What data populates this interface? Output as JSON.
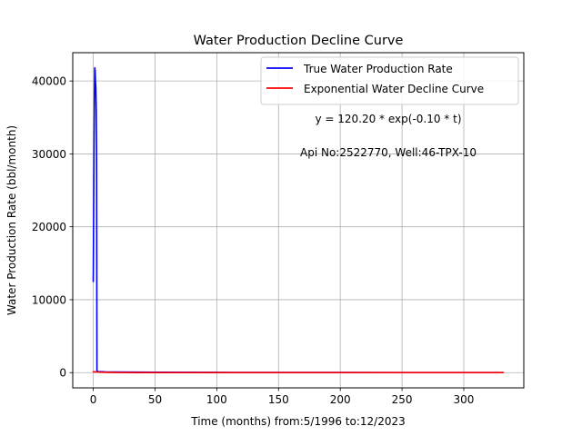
{
  "chart_data": {
    "type": "line",
    "title": "Water Production Decline Curve",
    "xlabel": "Time (months) from:5/1996 to:12/2023",
    "ylabel": "Water Production Rate (bbl/month)",
    "xlim": [
      -16.6,
      348.6
    ],
    "ylim": [
      -2090,
      43880
    ],
    "xticks": [
      0,
      50,
      100,
      150,
      200,
      250,
      300
    ],
    "yticks": [
      0,
      10000,
      20000,
      30000,
      40000
    ],
    "xtick_labels": [
      "0",
      "50",
      "100",
      "150",
      "200",
      "250",
      "300"
    ],
    "ytick_labels": [
      "0",
      "10000",
      "20000",
      "30000",
      "40000"
    ],
    "grid": true,
    "legend_position": "top-right",
    "series": [
      {
        "name": "True Water Production Rate",
        "color": "#0000ff",
        "x": [
          0,
          0.3,
          0.6,
          0.9,
          1.2,
          1.5,
          1.8,
          2.1,
          2.4,
          2.7,
          3,
          3,
          4,
          10,
          50,
          100,
          150,
          200,
          250,
          300,
          332
        ],
        "y": [
          12500,
          21000,
          30000,
          37000,
          41800,
          41500,
          40000,
          39000,
          36000,
          30000,
          500,
          200,
          150,
          100,
          50,
          30,
          20,
          15,
          10,
          10,
          10
        ]
      },
      {
        "name": "Exponential Water Decline Curve",
        "color": "#ff0000",
        "x": [
          0,
          1,
          2,
          3,
          5,
          8,
          12,
          20,
          35,
          60,
          100,
          150,
          200,
          250,
          300,
          332
        ],
        "y": [
          120.2,
          108.8,
          98.4,
          89.0,
          72.9,
          54.0,
          36.2,
          16.3,
          3.6,
          0.3,
          0,
          0,
          0,
          0,
          0,
          0
        ]
      }
    ],
    "annotations": [
      "y = 120.20 * exp(-0.10 * t)",
      "Api No:2522770, Well:46-TPX-10"
    ]
  }
}
